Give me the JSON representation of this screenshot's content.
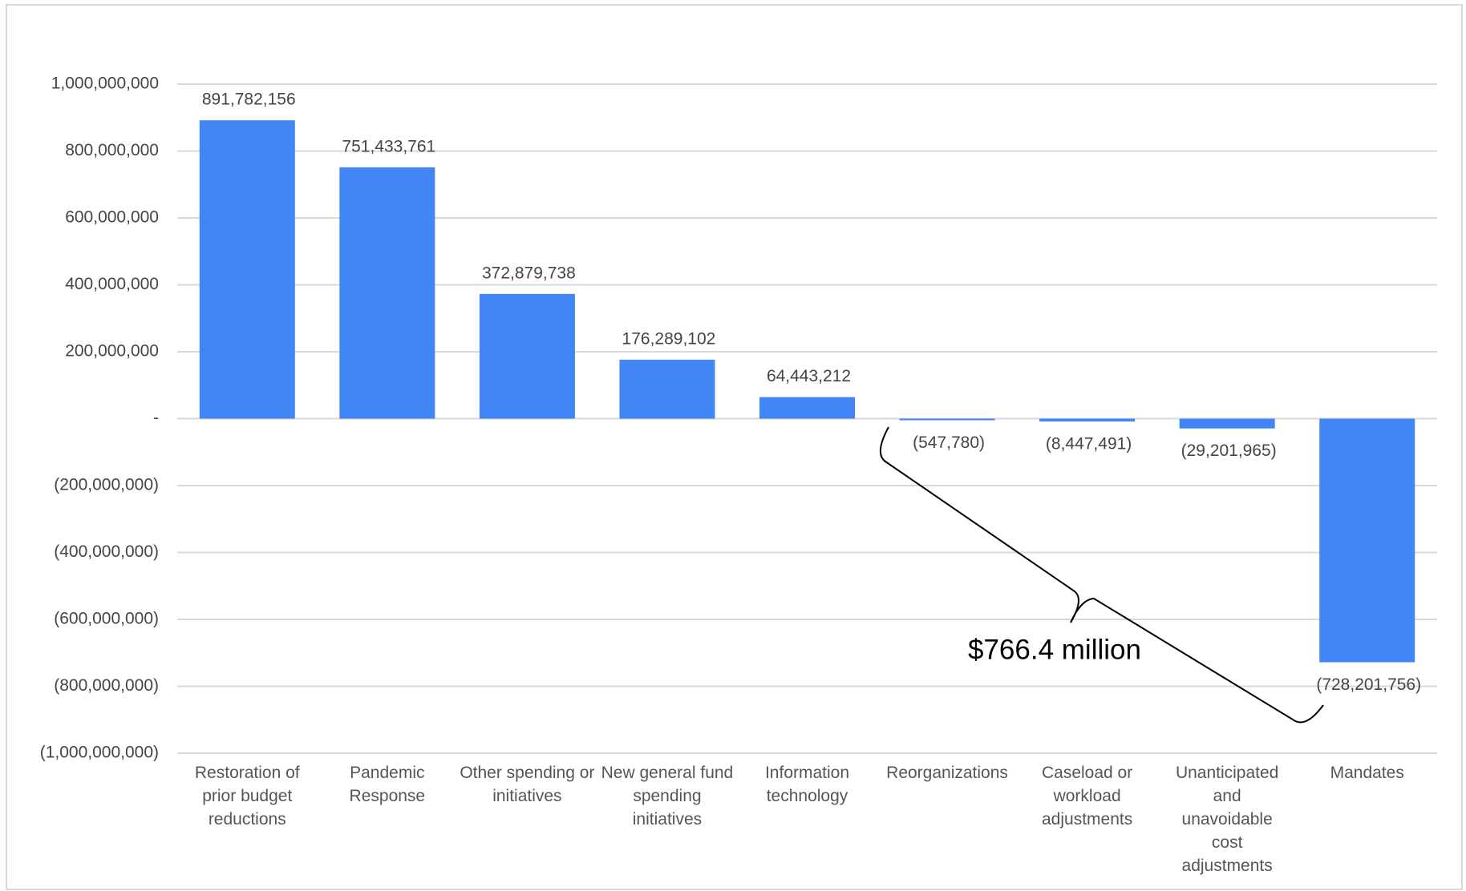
{
  "chart_data": {
    "type": "bar",
    "categories": [
      "Restoration of prior budget reductions",
      "Pandemic Response",
      "Other spending or initiatives",
      "New general fund spending initiatives",
      "Information technology",
      "Reorganizations",
      "Caseload or workload adjustments",
      "Unanticipated and unavoidable cost adjustments",
      "Mandates"
    ],
    "values": [
      891782156,
      751433761,
      372879738,
      176289102,
      64443212,
      -547780,
      -8447491,
      -29201965,
      -728201756
    ],
    "value_labels": [
      "891,782,156",
      "751,433,761",
      "372,879,738",
      "176,289,102",
      "64,443,212",
      "(547,780)",
      "(8,447,491)",
      "(29,201,965)",
      "(728,201,756)"
    ],
    "color": "#4285f4",
    "ylim": [
      -1000000000,
      1000000000
    ],
    "yticks": [
      {
        "value": -1000000000,
        "label": "(1,000,000,000)"
      },
      {
        "value": -800000000,
        "label": "(800,000,000)"
      },
      {
        "value": -600000000,
        "label": "(600,000,000)"
      },
      {
        "value": -400000000,
        "label": "(400,000,000)"
      },
      {
        "value": -200000000,
        "label": "(200,000,000)"
      },
      {
        "value": 0,
        "label": "-"
      },
      {
        "value": 200000000,
        "label": "200,000,000"
      },
      {
        "value": 400000000,
        "label": "400,000,000"
      },
      {
        "value": 600000000,
        "label": "600,000,000"
      },
      {
        "value": 800000000,
        "label": "800,000,000"
      },
      {
        "value": 1000000000,
        "label": "1,000,000,000"
      }
    ],
    "grid": true,
    "annotation": "$766.4 million"
  }
}
